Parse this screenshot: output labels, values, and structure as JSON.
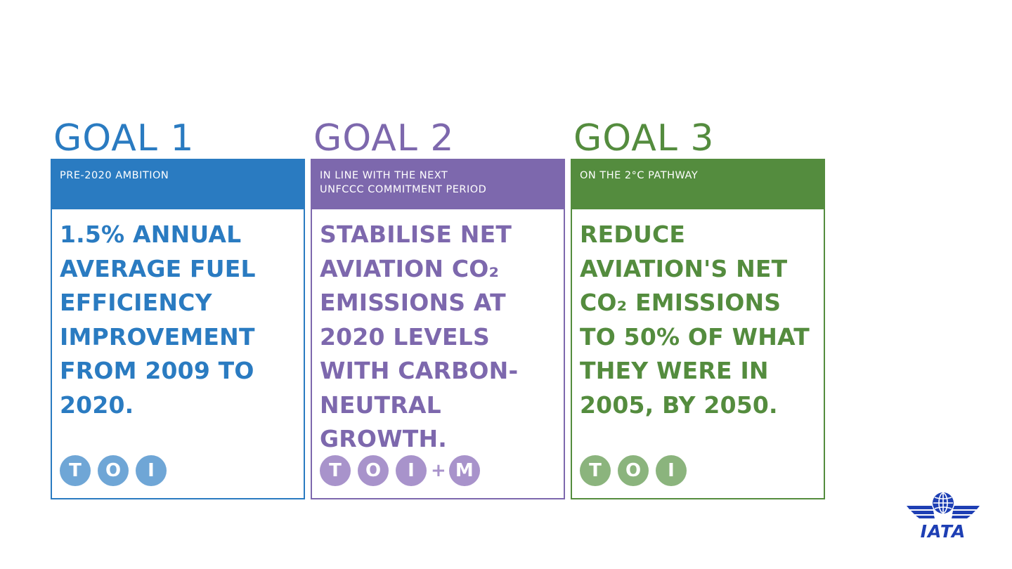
{
  "goals": [
    {
      "title": "GOAL 1",
      "band": [
        "PRE-2020 AMBITION"
      ],
      "statement": [
        "1.5% ANNUAL",
        "AVERAGE  FUEL",
        "EFFICIENCY",
        "IMPROVEMENT",
        "FROM 2009 TO",
        "2020."
      ],
      "pillars": [
        "T",
        "O",
        "I"
      ],
      "plus": "",
      "extra": "",
      "colors": {
        "main": "#2a7bc1",
        "circle": "#6fa6d6"
      }
    },
    {
      "title": "GOAL 2",
      "band": [
        "IN LINE WITH THE NEXT",
        "UNFCCC COMMITMENT PERIOD"
      ],
      "statement": [
        "STABILISE NET",
        "AVIATION CO₂",
        "EMISSIONS AT",
        "2020 LEVELS",
        "WITH CARBON-",
        "NEUTRAL",
        "GROWTH."
      ],
      "pillars": [
        "T",
        "O",
        "I"
      ],
      "plus": "+",
      "extra": "M",
      "colors": {
        "main": "#7d68ad",
        "circle": "#a893cb"
      }
    },
    {
      "title": "GOAL 3",
      "band": [
        "ON THE 2°C PATHWAY"
      ],
      "statement": [
        "REDUCE",
        "AVIATION'S NET",
        "CO₂ EMISSIONS",
        "TO 50% OF WHAT",
        "THEY WERE IN",
        "2005, BY 2050."
      ],
      "pillars": [
        "T",
        "O",
        "I"
      ],
      "plus": "",
      "extra": "",
      "colors": {
        "main": "#548c3e",
        "circle": "#8bb47d"
      }
    }
  ],
  "logo": {
    "text": "IATA",
    "icon": "iata-globe-wings-icon",
    "color": "#1e3fb4"
  }
}
